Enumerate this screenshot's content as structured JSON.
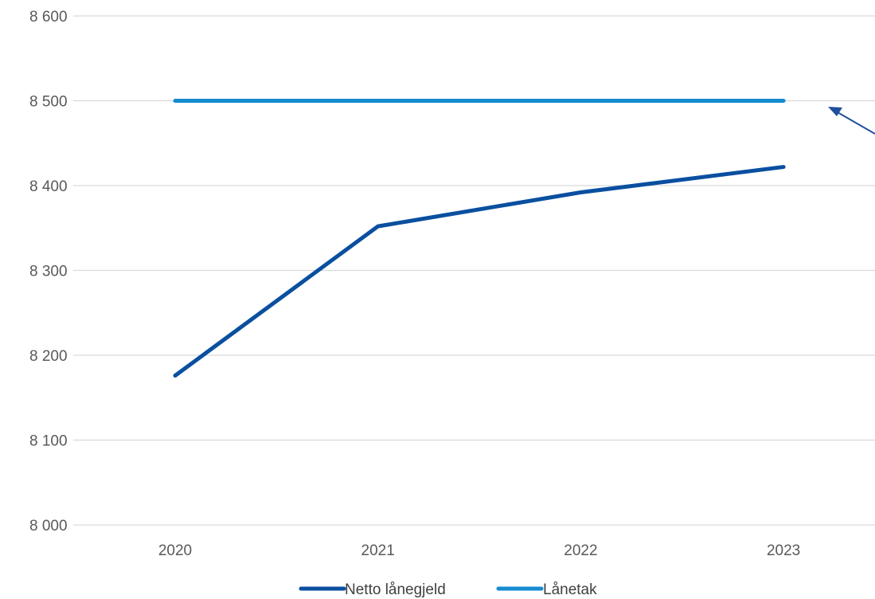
{
  "chart_data": {
    "type": "line",
    "title": "",
    "xlabel": "",
    "ylabel": "",
    "categories": [
      "2020",
      "2021",
      "2022",
      "2023"
    ],
    "ylim": [
      8000,
      8600
    ],
    "yticks": [
      8000,
      8100,
      8200,
      8300,
      8400,
      8500,
      8600
    ],
    "ytick_labels": [
      "8 000",
      "8 100",
      "8 200",
      "8 300",
      "8 400",
      "8 500",
      "8 600"
    ],
    "grid": "horizontal",
    "legend_position": "bottom",
    "series": [
      {
        "name": "Netto lånegjeld",
        "values": [
          8176,
          8352,
          8392,
          8422
        ],
        "color": "#0a4fa0"
      },
      {
        "name": "Lånetak",
        "values": [
          8500,
          8500,
          8500,
          8500
        ],
        "color": "#168bd0"
      }
    ],
    "annotation": {
      "type": "arrow",
      "target_series": "Lånetak",
      "color": "#1f4e9c"
    }
  }
}
